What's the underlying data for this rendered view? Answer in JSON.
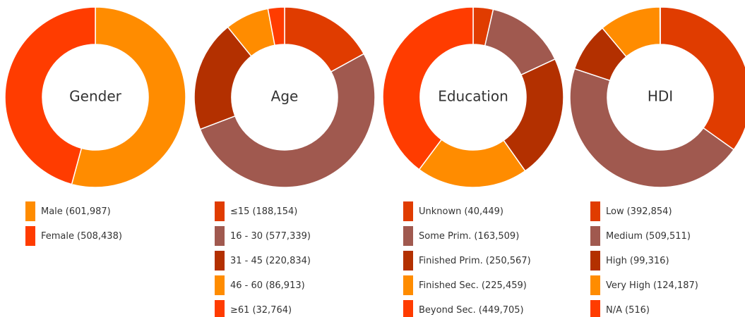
{
  "chart_data": [
    {
      "type": "donut",
      "title": "Gender",
      "categories": [
        "Male",
        "Female"
      ],
      "values": [
        601987,
        508438
      ],
      "value_labels": [
        "(601,987)",
        "(508,438)"
      ],
      "colors": [
        "#ff8c00",
        "#ff3c00"
      ]
    },
    {
      "type": "donut",
      "title": "Age",
      "categories": [
        "≤15",
        "16 - 30",
        "31 - 45",
        "46 - 60",
        "≥61"
      ],
      "values": [
        188154,
        577339,
        220834,
        86913,
        32764
      ],
      "value_labels": [
        "(188,154)",
        "(577,339)",
        "(220,834)",
        "(86,913)",
        "(32,764)"
      ],
      "colors": [
        "#e03c00",
        "#a0594f",
        "#b33000",
        "#ff8c00",
        "#ff3c00"
      ]
    },
    {
      "type": "donut",
      "title": "Education",
      "categories": [
        "Unknown",
        "Some Prim.",
        "Finished Prim.",
        "Finished Sec.",
        "Beyond Sec."
      ],
      "values": [
        40449,
        163509,
        250567,
        225459,
        449705
      ],
      "value_labels": [
        "(40,449)",
        "(163,509)",
        "(250,567)",
        "(225,459)",
        "(449,705)"
      ],
      "colors": [
        "#e03c00",
        "#a0594f",
        "#b33000",
        "#ff8c00",
        "#ff3c00"
      ]
    },
    {
      "type": "donut",
      "title": "HDI",
      "categories": [
        "Low",
        "Medium",
        "High",
        "Very High",
        "N/A"
      ],
      "values": [
        392854,
        509511,
        99316,
        124187,
        516
      ],
      "value_labels": [
        "(392,854)",
        "(509,511)",
        "(99,316)",
        "(124,187)",
        "(516)"
      ],
      "colors": [
        "#e03c00",
        "#a0594f",
        "#b33000",
        "#ff8c00",
        "#ff3c00"
      ]
    }
  ]
}
